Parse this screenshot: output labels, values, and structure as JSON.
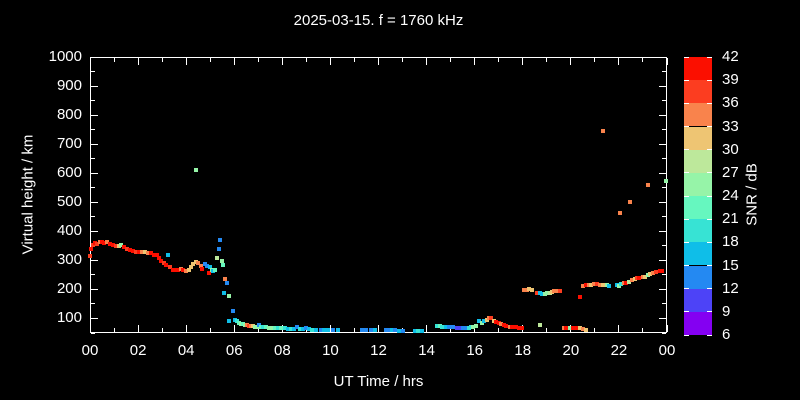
{
  "title": "2025-03-15. f = 1760 kHz",
  "colors": {
    "background": "#000000",
    "axis": "#ffffff",
    "text": "#ffffff"
  },
  "chart_data": {
    "type": "scatter",
    "title": "2025-03-15. f = 1760 kHz",
    "xlabel": "UT Time / hrs",
    "ylabel": "Virtual height / km",
    "xlim": [
      0,
      24
    ],
    "ylim": [
      50,
      1000
    ],
    "grid": false,
    "x_tick_values": [
      0,
      2,
      4,
      6,
      8,
      10,
      12,
      14,
      16,
      18,
      20,
      22,
      24
    ],
    "x_tick_labels": [
      "00",
      "02",
      "04",
      "06",
      "08",
      "10",
      "12",
      "14",
      "16",
      "18",
      "20",
      "22",
      "00"
    ],
    "x_minor_step": 1,
    "y_tick_values": [
      100,
      200,
      300,
      400,
      500,
      600,
      700,
      800,
      900,
      1000
    ],
    "y_tick_labels": [
      "100",
      "200",
      "300",
      "400",
      "500",
      "600",
      "700",
      "800",
      "900",
      "1000"
    ],
    "y_minor_step": 50,
    "colorbar": {
      "label": "SNR / dB",
      "min": 6,
      "max": 42,
      "step": 3,
      "tick_labels": [
        "6",
        "9",
        "12",
        "15",
        "18",
        "21",
        "24",
        "27",
        "30",
        "33",
        "36",
        "39",
        "42"
      ],
      "colors_bottom_to_top": [
        "#8400f2",
        "#4d43f7",
        "#2489f2",
        "#0fbee8",
        "#37e3d4",
        "#66f7bf",
        "#96f4a8",
        "#bde89b",
        "#eec573",
        "#f9834c",
        "#fc3d20",
        "#fb0f00"
      ]
    },
    "points_format": [
      "time_hrs",
      "virtual_height_km",
      "snr_bin_index_0_to_11"
    ],
    "points": [
      [
        0.02,
        316,
        10
      ],
      [
        0.06,
        340,
        11
      ],
      [
        0.12,
        352,
        10
      ],
      [
        0.2,
        360,
        11
      ],
      [
        0.3,
        358,
        10
      ],
      [
        0.42,
        362,
        9
      ],
      [
        0.5,
        364,
        11
      ],
      [
        0.6,
        360,
        11
      ],
      [
        0.7,
        362,
        9
      ],
      [
        0.82,
        356,
        11
      ],
      [
        0.95,
        354,
        11
      ],
      [
        1.08,
        350,
        10
      ],
      [
        1.2,
        350,
        8
      ],
      [
        1.28,
        352,
        6
      ],
      [
        1.4,
        345,
        11
      ],
      [
        1.52,
        340,
        10
      ],
      [
        1.65,
        336,
        11
      ],
      [
        1.78,
        332,
        11
      ],
      [
        1.9,
        330,
        10
      ],
      [
        2.03,
        330,
        11
      ],
      [
        2.15,
        330,
        9
      ],
      [
        2.28,
        330,
        8
      ],
      [
        2.4,
        326,
        9
      ],
      [
        2.52,
        324,
        11
      ],
      [
        2.65,
        320,
        11
      ],
      [
        2.77,
        318,
        11
      ],
      [
        2.88,
        308,
        11
      ],
      [
        2.97,
        298,
        11
      ],
      [
        3.06,
        290,
        10
      ],
      [
        3.15,
        284,
        11
      ],
      [
        3.25,
        318,
        3
      ],
      [
        3.33,
        278,
        10
      ],
      [
        3.45,
        268,
        11
      ],
      [
        3.55,
        266,
        11
      ],
      [
        3.65,
        268,
        11
      ],
      [
        3.77,
        272,
        9
      ],
      [
        3.88,
        266,
        11
      ],
      [
        4.0,
        264,
        9
      ],
      [
        4.1,
        268,
        8
      ],
      [
        4.22,
        278,
        8
      ],
      [
        4.3,
        288,
        8
      ],
      [
        4.4,
        294,
        8
      ],
      [
        4.5,
        290,
        9
      ],
      [
        4.6,
        282,
        9
      ],
      [
        4.65,
        272,
        11
      ],
      [
        4.4,
        610,
        6
      ],
      [
        4.78,
        288,
        2
      ],
      [
        4.88,
        282,
        2
      ],
      [
        4.95,
        258,
        11
      ],
      [
        4.98,
        276,
        3
      ],
      [
        5.07,
        268,
        6
      ],
      [
        5.12,
        262,
        3
      ],
      [
        5.22,
        266,
        5
      ],
      [
        5.3,
        308,
        7
      ],
      [
        5.38,
        338,
        2
      ],
      [
        5.42,
        370,
        2
      ],
      [
        5.5,
        299,
        6
      ],
      [
        5.55,
        284,
        5
      ],
      [
        5.57,
        188,
        3
      ],
      [
        5.63,
        235,
        9
      ],
      [
        5.68,
        222,
        2
      ],
      [
        5.8,
        179,
        6
      ],
      [
        5.78,
        92,
        3
      ],
      [
        5.93,
        126,
        2
      ],
      [
        6.02,
        95,
        3
      ],
      [
        6.1,
        90,
        4
      ],
      [
        6.18,
        86,
        5
      ],
      [
        6.28,
        82,
        6
      ],
      [
        6.35,
        80,
        5
      ],
      [
        6.45,
        78,
        6
      ],
      [
        6.52,
        76,
        9
      ],
      [
        6.6,
        75,
        10
      ],
      [
        6.68,
        74,
        9
      ],
      [
        6.77,
        73,
        8
      ],
      [
        6.85,
        72,
        6
      ],
      [
        6.95,
        72,
        6
      ],
      [
        7.05,
        78,
        2
      ],
      [
        7.1,
        70,
        5
      ],
      [
        7.2,
        70,
        4
      ],
      [
        7.33,
        69,
        5
      ],
      [
        7.45,
        68,
        6
      ],
      [
        7.58,
        68,
        6
      ],
      [
        7.7,
        67,
        5
      ],
      [
        7.82,
        67,
        4
      ],
      [
        7.95,
        66,
        5
      ],
      [
        8.1,
        66,
        4
      ],
      [
        8.22,
        65,
        3
      ],
      [
        8.35,
        65,
        4
      ],
      [
        8.5,
        64,
        3
      ],
      [
        8.6,
        70,
        2
      ],
      [
        8.72,
        64,
        4
      ],
      [
        8.85,
        63,
        3
      ],
      [
        9.0,
        68,
        2
      ],
      [
        9.1,
        63,
        3
      ],
      [
        9.22,
        62,
        4
      ],
      [
        9.4,
        62,
        3
      ],
      [
        9.6,
        62,
        2
      ],
      [
        9.75,
        62,
        3
      ],
      [
        9.9,
        61,
        3
      ],
      [
        10.1,
        61,
        2
      ],
      [
        10.3,
        60,
        3
      ],
      [
        11.3,
        60,
        2
      ],
      [
        11.5,
        60,
        2
      ],
      [
        11.7,
        59,
        2
      ],
      [
        11.85,
        59,
        3
      ],
      [
        12.3,
        60,
        2
      ],
      [
        12.42,
        60,
        2
      ],
      [
        12.55,
        59,
        3
      ],
      [
        12.7,
        59,
        2
      ],
      [
        12.85,
        58,
        3
      ],
      [
        13.0,
        58,
        2
      ],
      [
        13.5,
        58,
        3
      ],
      [
        13.65,
        57,
        4
      ],
      [
        13.8,
        57,
        3
      ],
      [
        14.45,
        74,
        4
      ],
      [
        14.55,
        73,
        5
      ],
      [
        14.65,
        72,
        4
      ],
      [
        14.8,
        71,
        3
      ],
      [
        14.95,
        70,
        2
      ],
      [
        15.1,
        69,
        2
      ],
      [
        15.25,
        68,
        1
      ],
      [
        15.4,
        67,
        1
      ],
      [
        15.5,
        66,
        2
      ],
      [
        15.62,
        66,
        2
      ],
      [
        15.75,
        68,
        4
      ],
      [
        15.85,
        70,
        4
      ],
      [
        15.95,
        72,
        6
      ],
      [
        16.05,
        74,
        6
      ],
      [
        16.2,
        92,
        3
      ],
      [
        16.3,
        84,
        6
      ],
      [
        16.4,
        90,
        3
      ],
      [
        16.5,
        96,
        8
      ],
      [
        16.6,
        102,
        9
      ],
      [
        16.7,
        100,
        10
      ],
      [
        16.8,
        92,
        8
      ],
      [
        16.9,
        88,
        11
      ],
      [
        17.0,
        84,
        11
      ],
      [
        17.1,
        80,
        9
      ],
      [
        17.2,
        78,
        11
      ],
      [
        17.32,
        74,
        11
      ],
      [
        17.45,
        72,
        9
      ],
      [
        17.55,
        70,
        11
      ],
      [
        17.7,
        70,
        11
      ],
      [
        17.85,
        68,
        11
      ],
      [
        17.95,
        68,
        11
      ],
      [
        18.7,
        78,
        7
      ],
      [
        19.7,
        68,
        9
      ],
      [
        19.8,
        66,
        11
      ],
      [
        19.97,
        66,
        6
      ],
      [
        20.1,
        66,
        11
      ],
      [
        20.25,
        66,
        11
      ],
      [
        20.4,
        66,
        8
      ],
      [
        20.52,
        64,
        9
      ],
      [
        20.65,
        62,
        8
      ],
      [
        18.05,
        197,
        9
      ],
      [
        18.17,
        199,
        9
      ],
      [
        18.28,
        202,
        8
      ],
      [
        18.4,
        199,
        8
      ],
      [
        18.6,
        188,
        10
      ],
      [
        18.73,
        186,
        3
      ],
      [
        18.8,
        184,
        3
      ],
      [
        18.93,
        184,
        6
      ],
      [
        19.0,
        186,
        6
      ],
      [
        19.13,
        188,
        7
      ],
      [
        19.22,
        190,
        8
      ],
      [
        19.3,
        194,
        9
      ],
      [
        19.43,
        194,
        9
      ],
      [
        19.53,
        196,
        10
      ],
      [
        20.4,
        173,
        11
      ],
      [
        20.5,
        212,
        9
      ],
      [
        20.62,
        214,
        11
      ],
      [
        20.75,
        214,
        9
      ],
      [
        20.85,
        216,
        8
      ],
      [
        20.95,
        218,
        9
      ],
      [
        21.1,
        218,
        10
      ],
      [
        21.2,
        216,
        9
      ],
      [
        21.35,
        214,
        8
      ],
      [
        21.5,
        214,
        6
      ],
      [
        21.6,
        212,
        3
      ],
      [
        21.9,
        216,
        3
      ],
      [
        22.0,
        212,
        6
      ],
      [
        22.1,
        218,
        4
      ],
      [
        22.2,
        221,
        9
      ],
      [
        22.3,
        223,
        11
      ],
      [
        22.4,
        227,
        7
      ],
      [
        22.55,
        233,
        9
      ],
      [
        22.65,
        235,
        8
      ],
      [
        22.75,
        239,
        10
      ],
      [
        22.85,
        239,
        11
      ],
      [
        23.0,
        242,
        9
      ],
      [
        23.1,
        244,
        8
      ],
      [
        23.2,
        250,
        6
      ],
      [
        23.3,
        253,
        8
      ],
      [
        23.4,
        256,
        9
      ],
      [
        23.55,
        261,
        10
      ],
      [
        23.7,
        265,
        11
      ],
      [
        23.8,
        265,
        11
      ],
      [
        21.35,
        745,
        9
      ],
      [
        22.04,
        463,
        9
      ],
      [
        22.45,
        502,
        9
      ],
      [
        23.19,
        560,
        9
      ],
      [
        23.97,
        572,
        6
      ]
    ]
  }
}
